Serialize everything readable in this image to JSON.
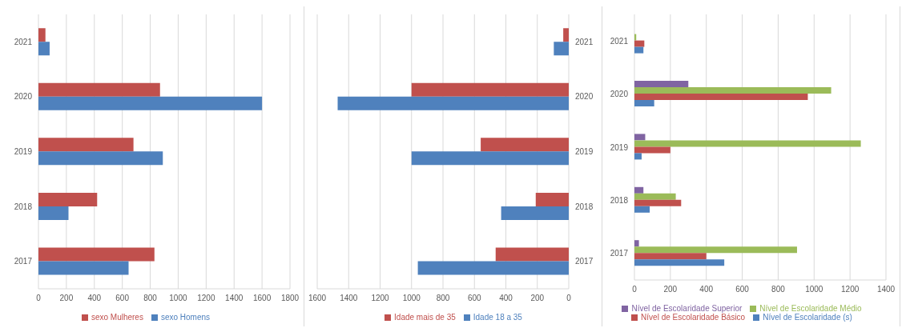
{
  "chart_data": [
    {
      "type": "bar",
      "orientation": "horizontal",
      "categories": [
        "2021",
        "2020",
        "2019",
        "2018",
        "2017"
      ],
      "series": [
        {
          "name": "sexo Mulheres",
          "color": "#c0504d",
          "values": [
            50,
            870,
            680,
            420,
            830
          ]
        },
        {
          "name": "sexo Homens",
          "color": "#4f81bd",
          "values": [
            80,
            1600,
            890,
            215,
            645
          ]
        }
      ],
      "xlim": [
        0,
        1800
      ],
      "xticks": [
        0,
        200,
        400,
        600,
        800,
        1000,
        1200,
        1400,
        1600,
        1800
      ],
      "grid": "x",
      "legend": "bottom"
    },
    {
      "type": "bar",
      "orientation": "horizontal",
      "categories": [
        "2021",
        "2020",
        "2019",
        "2018",
        "2017"
      ],
      "series": [
        {
          "name": "Idade mais de 35",
          "color": "#c0504d",
          "values": [
            35,
            1000,
            560,
            210,
            465
          ]
        },
        {
          "name": "Idade 18 a 35",
          "color": "#4f81bd",
          "values": [
            95,
            1470,
            1000,
            430,
            960
          ]
        }
      ],
      "xlim": [
        1600,
        0
      ],
      "xticks": [
        0,
        200,
        400,
        600,
        800,
        1000,
        1200,
        1400,
        1600
      ],
      "grid": "x",
      "legend": "bottom"
    },
    {
      "type": "bar",
      "orientation": "horizontal",
      "categories": [
        "2021",
        "2020",
        "2019",
        "2018",
        "2017"
      ],
      "series": [
        {
          "name": "Nível de Escolaridade Superior",
          "color": "#8064a2",
          "values": [
            0,
            300,
            60,
            50,
            25
          ]
        },
        {
          "name": "Nível de Escolaridade Médio",
          "color": "#9bbb59",
          "values": [
            10,
            1095,
            1260,
            230,
            905
          ]
        },
        {
          "name": "Nível de Escolaridade Básico",
          "color": "#c0504d",
          "values": [
            55,
            965,
            200,
            260,
            400
          ]
        },
        {
          "name": "Nível de Escolaridade (s)",
          "color": "#4f81bd",
          "values": [
            50,
            110,
            40,
            85,
            500
          ]
        }
      ],
      "xlim": [
        0,
        1400
      ],
      "xticks": [
        0,
        200,
        400,
        600,
        800,
        1000,
        1200,
        1400
      ],
      "grid": "x",
      "legend": "bottom"
    }
  ]
}
